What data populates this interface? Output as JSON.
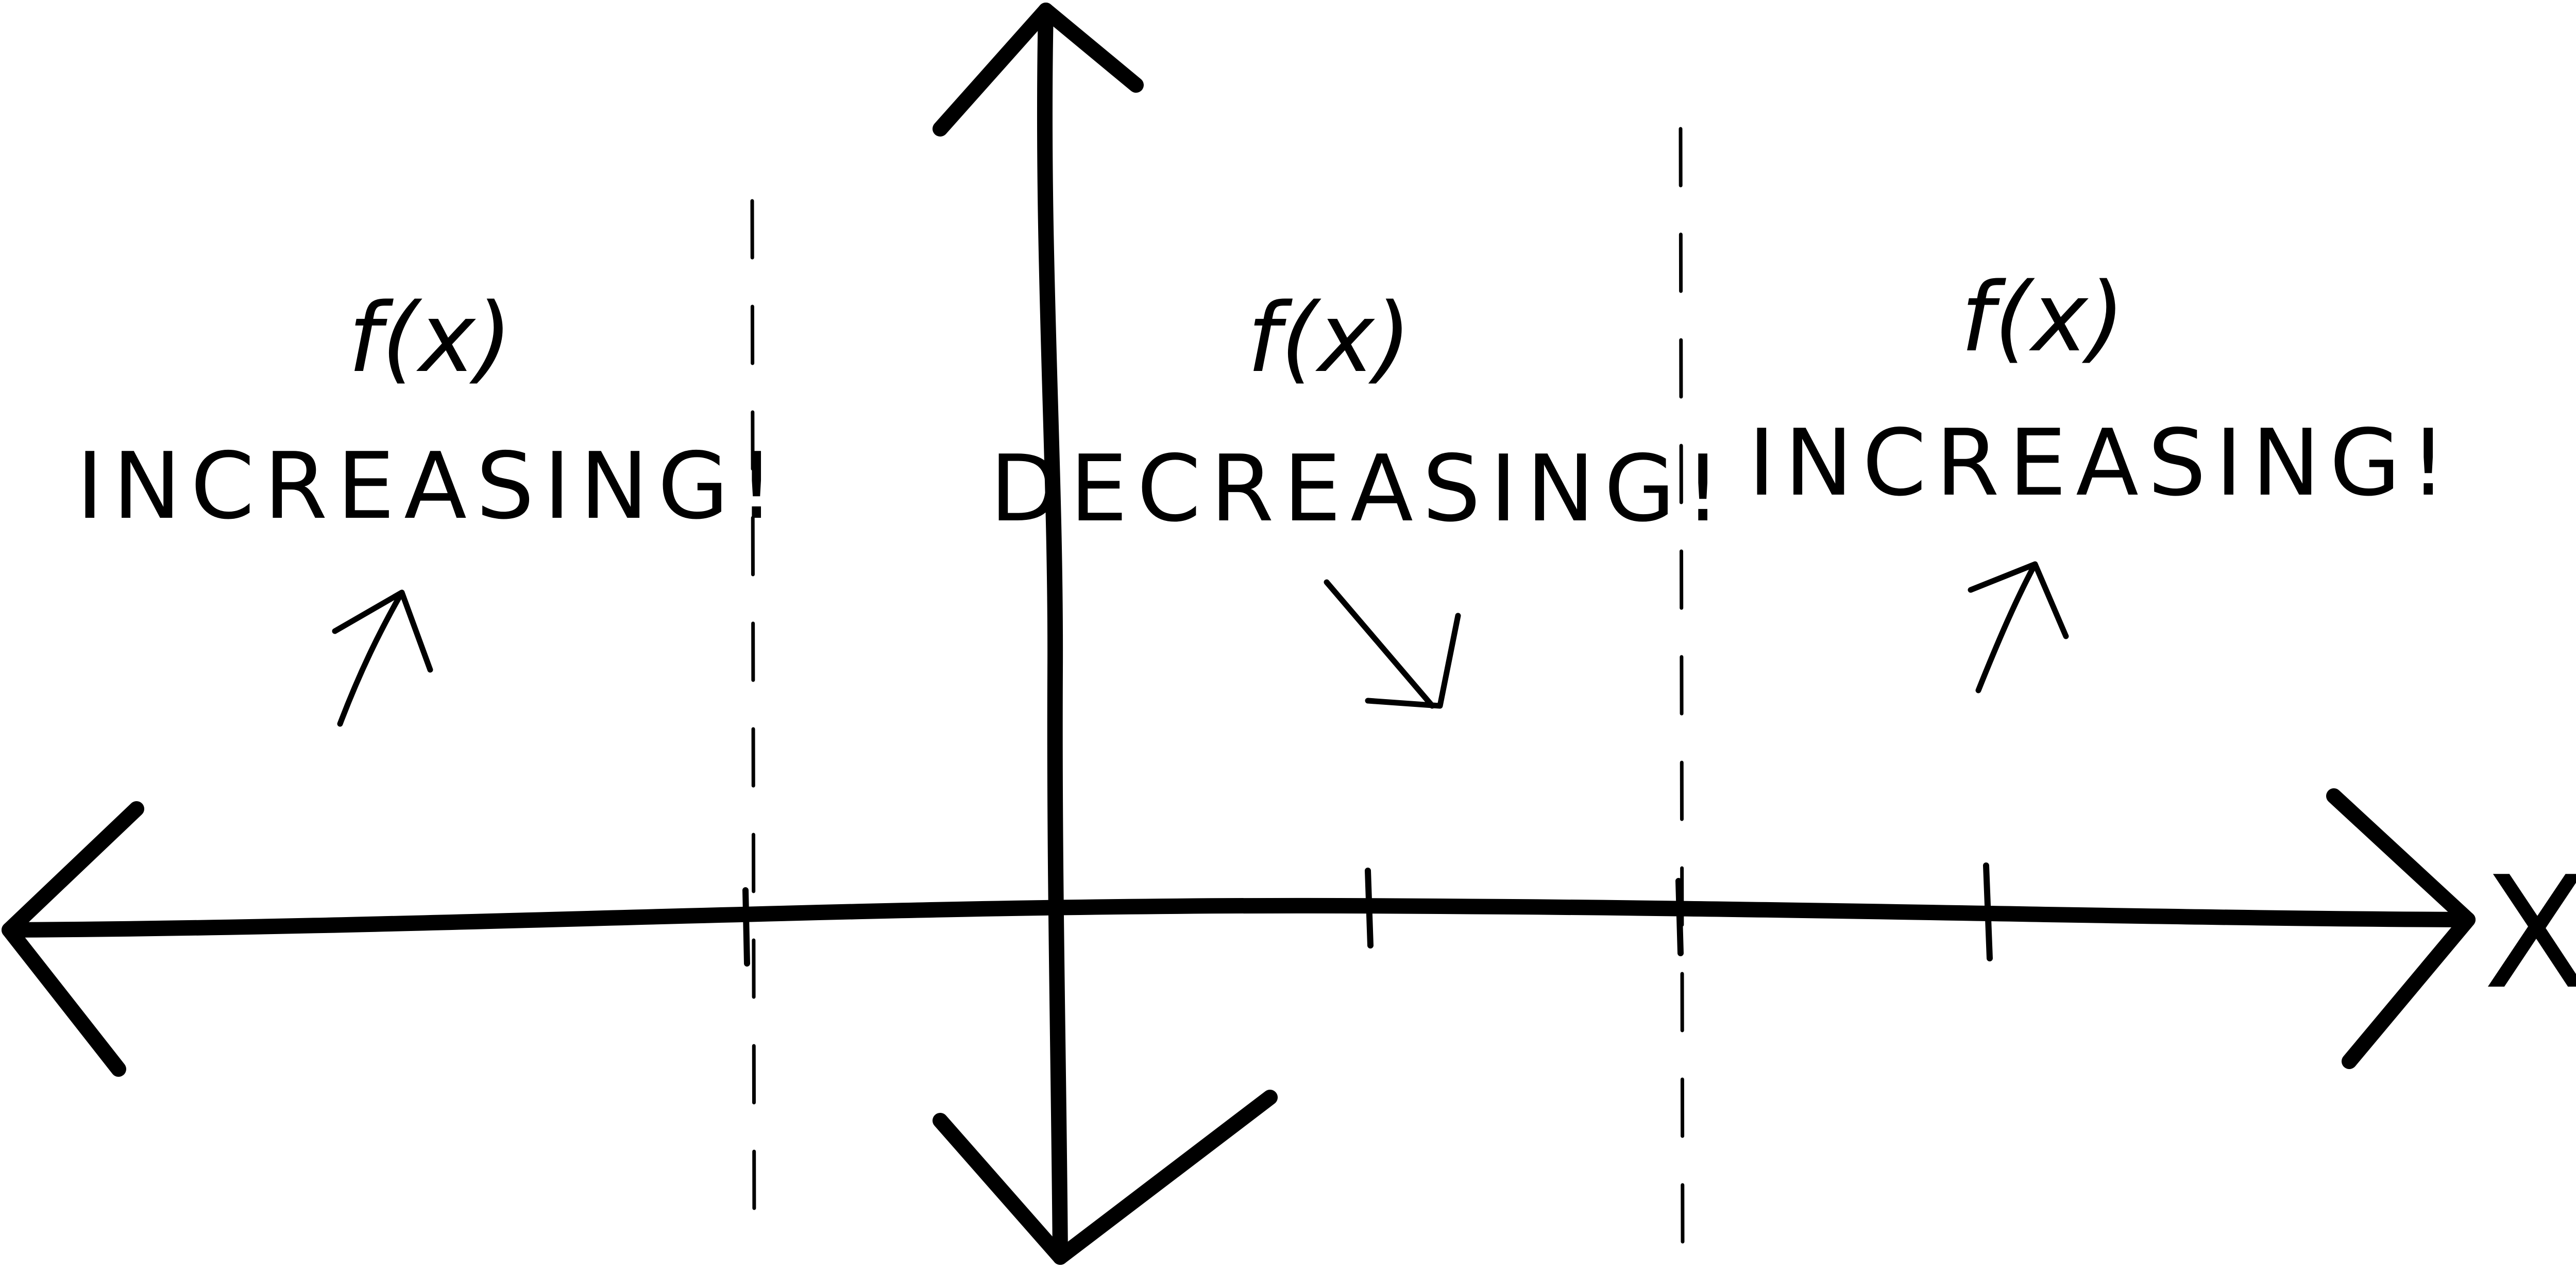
{
  "axis": {
    "x_label": "X"
  },
  "regions": [
    {
      "expression": "f(x)",
      "trend_text": "INCREASING!",
      "direction": "up"
    },
    {
      "expression": "f(x)",
      "trend_text": "DECREASING!",
      "direction": "down"
    },
    {
      "expression": "f(x)",
      "trend_text": "INCREASING!",
      "direction": "up"
    }
  ],
  "colors": {
    "ink": "#000000",
    "background": "#ffffff"
  }
}
